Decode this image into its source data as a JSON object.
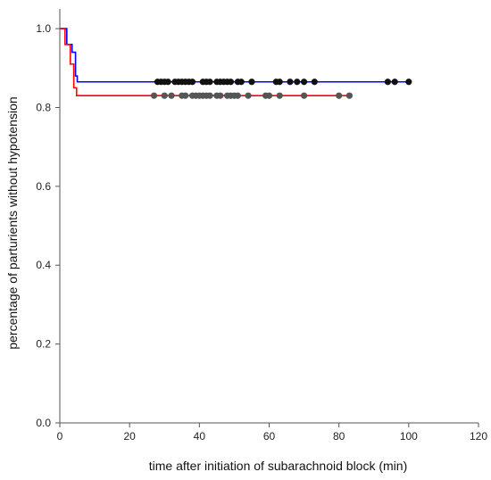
{
  "chart_data": {
    "type": "line",
    "subtype": "kaplan-meier step curves with censor markers",
    "xlabel": "time after initiation of subarachnoid block (min)",
    "ylabel": "percentage of parturients without hypotension",
    "xlim": [
      0,
      120
    ],
    "ylim": [
      0,
      1.05
    ],
    "x_ticks": [
      0,
      20,
      40,
      60,
      80,
      100,
      120
    ],
    "x_tick_labels": [
      "0",
      "20",
      "40",
      "60",
      "80",
      "100",
      "120"
    ],
    "y_ticks": [
      0.0,
      0.2,
      0.4,
      0.6,
      0.8,
      1.0
    ],
    "y_tick_labels": [
      "0.0",
      "0.2",
      "0.4",
      "0.6",
      "0.8",
      "1.0"
    ],
    "grid": false,
    "legend": "none",
    "series": [
      {
        "color": "#0000ff",
        "marker_color": "#111111",
        "steps": [
          [
            0,
            1.0
          ],
          [
            2,
            0.96
          ],
          [
            3.5,
            0.94
          ],
          [
            4.5,
            0.88
          ],
          [
            5,
            0.865
          ],
          [
            100,
            0.865
          ]
        ],
        "censored_x": [
          28,
          29,
          30,
          31,
          33,
          34,
          35,
          36,
          37,
          38,
          41,
          42,
          43,
          45,
          46,
          47,
          48,
          49,
          51,
          52,
          55,
          62,
          63,
          66,
          68,
          70,
          73,
          94,
          96,
          100
        ],
        "censored_y": 0.865
      },
      {
        "color": "#ff0000",
        "marker_color": "#555555",
        "steps": [
          [
            0,
            1.0
          ],
          [
            1.5,
            0.96
          ],
          [
            3,
            0.91
          ],
          [
            4,
            0.85
          ],
          [
            4.8,
            0.83
          ],
          [
            83,
            0.83
          ]
        ],
        "censored_x": [
          27,
          30,
          32,
          35,
          36,
          38,
          39,
          40,
          41,
          42,
          43,
          45,
          46,
          48,
          49,
          50,
          51,
          54,
          59,
          60,
          63,
          70,
          80,
          83
        ],
        "censored_y": 0.83
      }
    ]
  }
}
